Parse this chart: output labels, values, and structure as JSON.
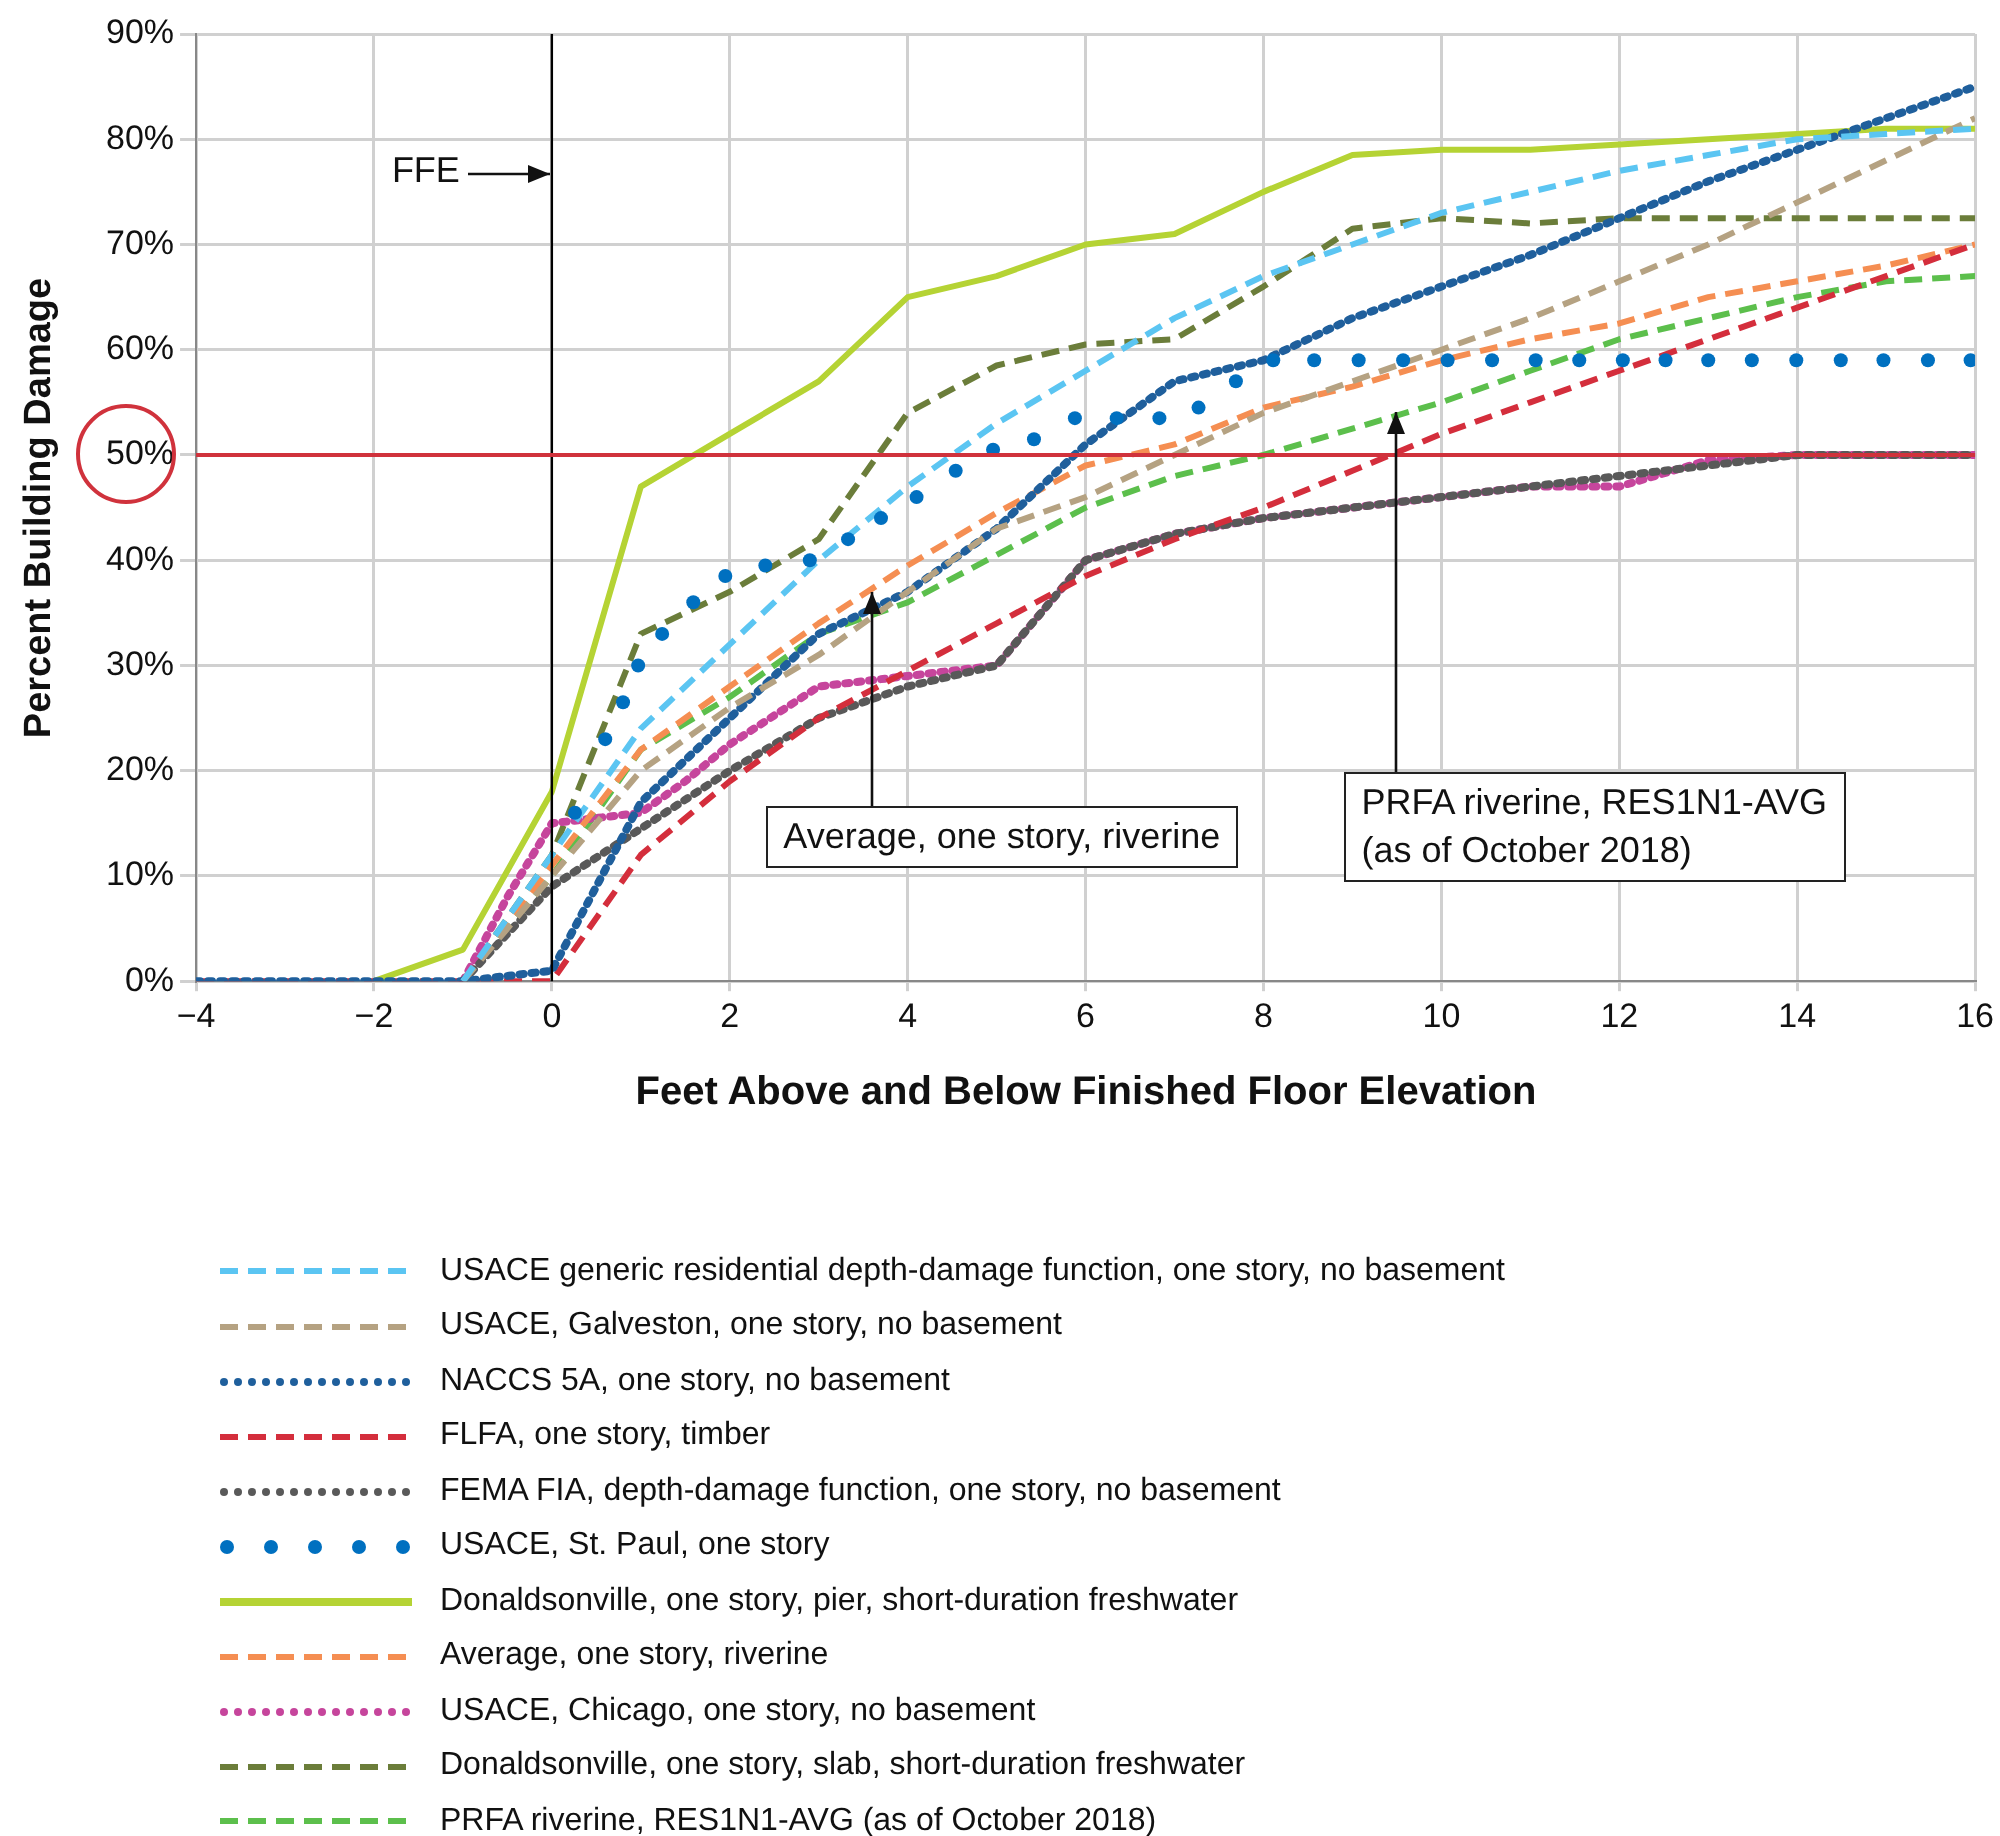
{
  "chart_data": {
    "type": "line",
    "xlabel": "Feet Above and Below Finished Floor Elevation",
    "ylabel": "Percent Building Damage",
    "xlim": [
      -4,
      16
    ],
    "xticks": [
      {
        "value": -4,
        "label": "−4"
      },
      {
        "value": -2,
        "label": "−2"
      },
      0,
      2,
      4,
      6,
      8,
      10,
      12,
      14,
      16
    ],
    "ylim": [
      0,
      90
    ],
    "yticks": [
      {
        "value": 0,
        "label": "0%"
      },
      {
        "value": 10,
        "label": "10%"
      },
      {
        "value": 20,
        "label": "20%"
      },
      {
        "value": 30,
        "label": "30%"
      },
      {
        "value": 40,
        "label": "40%"
      },
      {
        "value": 50,
        "label": "50%"
      },
      {
        "value": 60,
        "label": "60%"
      },
      {
        "value": 70,
        "label": "70%"
      },
      {
        "value": 80,
        "label": "80%"
      },
      {
        "value": 90,
        "label": "90%"
      }
    ],
    "grid": true,
    "legend": "bottom",
    "ref_lines": [
      {
        "axis": "x",
        "value": 0,
        "label": "FFE",
        "color": "#000000"
      },
      {
        "axis": "y",
        "value": 50,
        "color": "#d0323c"
      }
    ],
    "annotations": [
      {
        "text": "Average, one story, riverine",
        "x": 3.6,
        "y": 37
      },
      {
        "text": "PRFA riverine, RES1N1-AVG\n(as of October 2018)",
        "x": 9.5,
        "y": 54
      }
    ],
    "series": [
      {
        "name": "USACE generic residential depth-damage function, one story, no basement",
        "color": "#5bc5f2",
        "line_style": "dashed",
        "x": [
          -1,
          0,
          1,
          2,
          3,
          4,
          5,
          6,
          7,
          8,
          9,
          10,
          11,
          12,
          13,
          14,
          15,
          16
        ],
        "values": [
          0,
          12,
          24,
          32,
          40,
          47,
          53,
          58,
          63,
          67,
          70,
          73,
          75,
          77,
          78.5,
          80,
          80.5,
          81
        ]
      },
      {
        "name": "USACE, Galveston, one story, no basement",
        "color": "#b5a282",
        "line_style": "dashed",
        "x": [
          -1,
          0,
          1,
          2,
          3,
          4,
          5,
          6,
          7,
          8,
          9,
          10,
          11,
          12,
          13,
          14,
          15,
          16
        ],
        "values": [
          0,
          10,
          20,
          26,
          31,
          37,
          43,
          46,
          50,
          54,
          57,
          60,
          63,
          66.5,
          70,
          74,
          78,
          82
        ]
      },
      {
        "name": "NACCS 5A, one story, no basement",
        "color": "#1f5f9c",
        "line_style": "dotted",
        "x": [
          -4,
          -1,
          0,
          1,
          2,
          3,
          4,
          5,
          6,
          7,
          8,
          9,
          10,
          11,
          12,
          13,
          14,
          15,
          16
        ],
        "values": [
          0,
          0,
          1,
          17,
          25,
          33,
          37,
          43,
          51,
          57,
          59,
          63,
          66,
          69,
          72.5,
          76,
          79,
          82,
          85
        ]
      },
      {
        "name": "FLFA, one story, timber",
        "color": "#d42e3c",
        "line_style": "dashed",
        "x": [
          -4,
          0,
          1,
          2,
          3,
          4,
          5,
          6,
          7,
          8,
          9,
          10,
          11,
          12,
          13,
          14,
          15,
          16
        ],
        "values": [
          0,
          0,
          12,
          19,
          25,
          29.5,
          34,
          38.5,
          42,
          45,
          48.5,
          52,
          55,
          58,
          61,
          64,
          67,
          70
        ]
      },
      {
        "name": "FEMA FIA, depth-damage function, one story, no basement",
        "color": "#595959",
        "line_style": "dotted",
        "x": [
          -1,
          0,
          1,
          2,
          3,
          4,
          5,
          6,
          7,
          8,
          9,
          10,
          11,
          12,
          13,
          14,
          15,
          16
        ],
        "values": [
          0,
          9,
          14.5,
          20,
          25,
          28,
          30,
          40,
          42.5,
          44,
          45,
          46,
          47,
          48,
          49,
          50,
          50,
          50
        ]
      },
      {
        "name": "USACE, St. Paul, one story",
        "color": "#0070c0",
        "type": "scatter",
        "marker": "circle",
        "x": [
          0.26,
          0.6,
          0.8,
          0.97,
          1.24,
          1.59,
          1.95,
          2.4,
          2.9,
          3.33,
          3.7,
          4.1,
          4.54,
          4.96,
          5.42,
          5.88,
          6.35,
          6.83,
          7.27,
          7.69,
          8.11,
          8.57,
          9.07,
          9.57,
          10.07,
          10.57,
          11.06,
          11.55,
          12.04,
          12.52,
          13,
          13.49,
          13.99,
          14.49,
          14.97,
          15.47,
          15.95
        ],
        "values": [
          16,
          23,
          26.5,
          30,
          33,
          36,
          38.5,
          39.5,
          40,
          42,
          44,
          46,
          48.5,
          50.5,
          51.5,
          53.5,
          53.5,
          53.5,
          54.5,
          57,
          59,
          59,
          59,
          59,
          59,
          59,
          59,
          59,
          59,
          59,
          59,
          59,
          59,
          59,
          59,
          59,
          59
        ]
      },
      {
        "name": "Donaldsonville, one story, pier, short-duration freshwater",
        "color": "#b5d334",
        "line_style": "solid",
        "x": [
          -2,
          -1,
          0,
          1,
          2,
          3,
          4,
          5,
          6,
          7,
          8,
          9,
          10,
          11,
          12,
          13,
          14,
          15,
          16
        ],
        "values": [
          0,
          3,
          18,
          47,
          52,
          57,
          65,
          67,
          70,
          71,
          75,
          78.5,
          79,
          79,
          79.5,
          80,
          80.5,
          81,
          81
        ]
      },
      {
        "name": "Average, one story, riverine",
        "color": "#f58e52",
        "line_style": "dashed",
        "x": [
          -1,
          0,
          1,
          2,
          3,
          4,
          5,
          6,
          7,
          8,
          9,
          10,
          11,
          12,
          13,
          14,
          15,
          16
        ],
        "values": [
          0,
          11,
          22,
          28,
          34,
          39.5,
          44.5,
          49,
          51,
          54.5,
          56.5,
          59,
          61,
          62.5,
          65,
          66.5,
          68,
          70
        ]
      },
      {
        "name": "USACE, Chicago, one story, no basement",
        "color": "#c6459c",
        "line_style": "dotted",
        "x": [
          -1,
          -0.5,
          0,
          1,
          1.5,
          2,
          3,
          4,
          5,
          5.5,
          6,
          7,
          8,
          9,
          10,
          11,
          12,
          13,
          14,
          15,
          16
        ],
        "values": [
          0,
          8,
          15,
          16,
          19,
          22.5,
          28,
          29,
          30,
          35,
          40,
          42.5,
          44,
          45,
          46,
          47,
          47,
          49.5,
          50,
          50,
          50
        ]
      },
      {
        "name": "Donaldsonville, one story, slab, short-duration freshwater",
        "color": "#6b7d3a",
        "line_style": "dashed",
        "x": [
          -1,
          0,
          1,
          2,
          3,
          4,
          5,
          6,
          7,
          8,
          9,
          10,
          11,
          12,
          13,
          14,
          15,
          16
        ],
        "values": [
          0,
          12,
          33,
          37,
          42,
          54,
          58.5,
          60.5,
          61,
          66,
          71.5,
          72.5,
          72,
          72.5,
          72.5,
          72.5,
          72.5,
          72.5
        ]
      },
      {
        "name": "PRFA riverine, RES1N1-AVG (as of October 2018)",
        "color": "#5cbf4c",
        "line_style": "dashed",
        "x": [
          -1,
          0,
          1,
          2,
          3,
          4,
          5,
          6,
          7,
          8,
          9,
          10,
          11,
          12,
          13,
          14,
          15,
          16
        ],
        "values": [
          0,
          10,
          22,
          27,
          33,
          36,
          40.5,
          45,
          48,
          50,
          52.5,
          55,
          58,
          61,
          63,
          65,
          66.5,
          67
        ]
      }
    ]
  }
}
